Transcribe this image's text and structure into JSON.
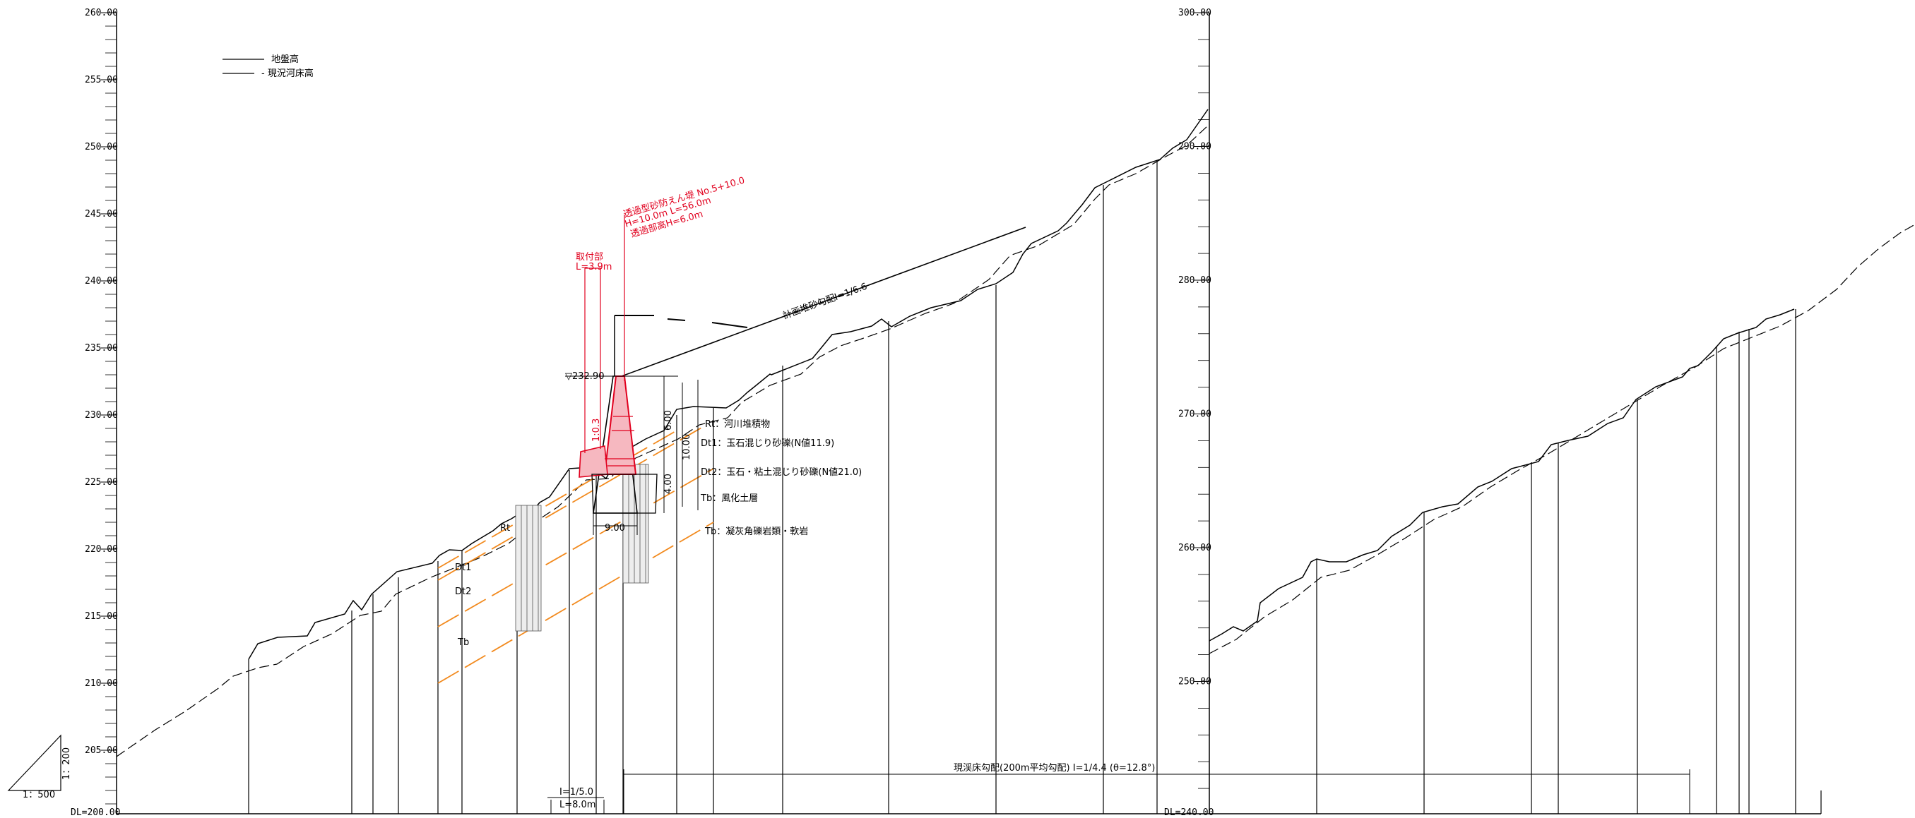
{
  "left_axis": {
    "ticks": [
      "260.00",
      "255.00",
      "250.00",
      "245.00",
      "240.00",
      "235.00",
      "230.00",
      "225.00",
      "220.00",
      "215.00",
      "210.00",
      "205.00"
    ],
    "datum": "DL=200.00"
  },
  "right_axis": {
    "ticks": [
      "300.00",
      "290.00",
      "280.00",
      "270.00",
      "260.00",
      "250.00"
    ],
    "datum": "DL=240.00"
  },
  "legend": {
    "items": [
      {
        "label": "地盤高",
        "style": "solid"
      },
      {
        "label": "- 現況河床高",
        "style": "dashed"
      }
    ]
  },
  "scale_triangle": {
    "vertical": "1：200",
    "horizontal": "1：500"
  },
  "annotations": {
    "dam_name": "透過型砂防えん堤 No.5+10.0",
    "dam_dims": "H=10.0m L=56.0m",
    "dam_opening": "透過部高H=6.0m",
    "wing_title": "取付部",
    "wing_length": "L=3.9m",
    "crest_level": "▽232.90",
    "planned_slope": "計画堆砂勾配I=1/6.6",
    "current_slope": "現渓床勾配(200m平均勾配) I=1/4.4 (θ=12.8°)",
    "apron_slope": "I=1/5.0",
    "apron_length": "L=8.0m",
    "dim_height_total": "10.00",
    "dim_height_open": "6.00",
    "dim_height_base": "4.00",
    "dim_width": "9.00",
    "slope_ratio": "1:0.3"
  },
  "geology": [
    {
      "code": "Rt",
      "desc": "：河川堆積物"
    },
    {
      "code": "Dt1",
      "desc": "：玉石混じり砂礫(N値11.9)"
    },
    {
      "code": "Dt2",
      "desc": "：玉石・粘土混じり砂礫(N値21.0)"
    },
    {
      "code": "Tb",
      "desc": "：風化土層"
    },
    {
      "code": "Tb",
      "desc": "：凝灰角礫岩類・軟岩"
    }
  ],
  "section_labels": {
    "rt": "Rt",
    "dt1": "Dt1",
    "dt2": "Dt2",
    "tb": "Tb"
  },
  "colors": {
    "line": "#000000",
    "dam": "#e1001e",
    "dam_fill": "#f6b8c0",
    "geology": "#f28a1e"
  }
}
